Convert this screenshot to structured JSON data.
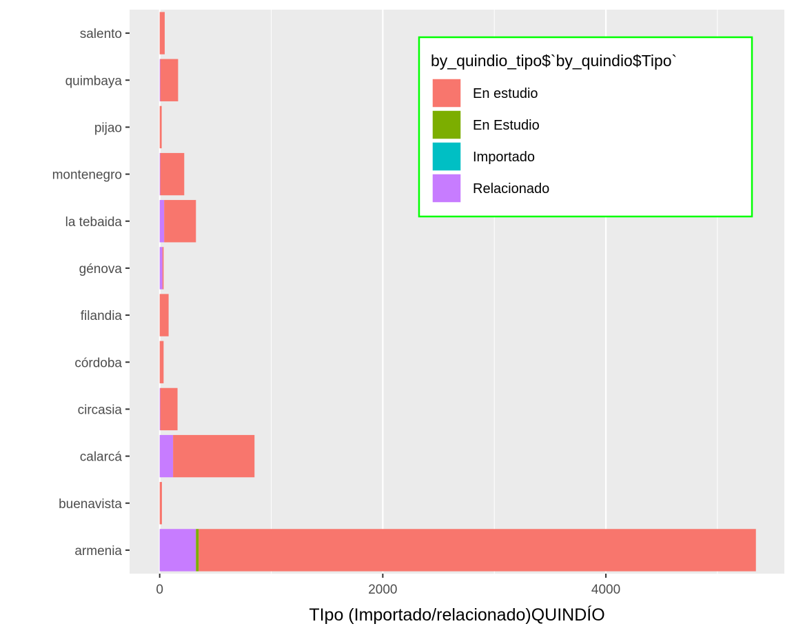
{
  "chart_data": {
    "type": "bar",
    "orientation": "horizontal",
    "stacked": true,
    "categories": [
      "armenia",
      "buenavista",
      "calarcá",
      "circasia",
      "córdoba",
      "filandia",
      "génova",
      "la tebaida",
      "montenegro",
      "pijao",
      "quimbaya",
      "salento"
    ],
    "series": [
      {
        "name": "Relacionado",
        "color": "#C77CFF",
        "values": [
          325,
          0,
          120,
          5,
          0,
          0,
          25,
          40,
          5,
          0,
          5,
          0
        ]
      },
      {
        "name": "Importado",
        "color": "#00BFC4",
        "values": [
          0,
          0,
          0,
          0,
          0,
          0,
          0,
          0,
          0,
          0,
          0,
          0
        ]
      },
      {
        "name": "En Estudio",
        "color": "#7CAE00",
        "values": [
          25,
          0,
          0,
          0,
          0,
          0,
          0,
          0,
          0,
          0,
          0,
          0
        ]
      },
      {
        "name": "En estudio",
        "color": "#F8766D",
        "values": [
          4995,
          20,
          730,
          155,
          35,
          80,
          10,
          285,
          215,
          18,
          160,
          45
        ]
      }
    ],
    "xlim": [
      -270,
      5600
    ],
    "x_ticks": [
      0,
      2000,
      4000
    ],
    "x_tick_labels": [
      "0",
      "2000",
      "4000"
    ],
    "xlabel": "TIpo (Importado/relacionado)QUINDÍO",
    "ylabel": "",
    "grid": true,
    "legend": {
      "title": "by_quindio_tipo$`by_quindio$Tipo`",
      "position": "top-right",
      "border_color": "#00FF00",
      "entries": [
        {
          "label": "En estudio",
          "color": "#F8766D"
        },
        {
          "label": "En Estudio",
          "color": "#7CAE00"
        },
        {
          "label": "Importado",
          "color": "#00BFC4"
        },
        {
          "label": "Relacionado",
          "color": "#C77CFF"
        }
      ]
    },
    "panel_background": "#EBEBEB",
    "gridline_color": "#FFFFFF"
  }
}
